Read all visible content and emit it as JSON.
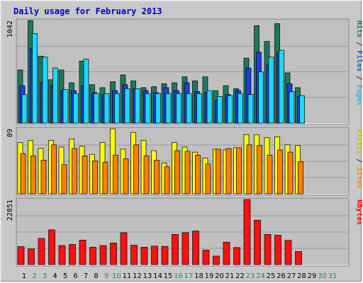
{
  "chart_data": {
    "type": "bar",
    "title": "Daily usage for February 2013",
    "categories": [
      "1",
      "2",
      "3",
      "4",
      "5",
      "6",
      "7",
      "8",
      "9",
      "10",
      "11",
      "12",
      "13",
      "14",
      "15",
      "16",
      "17",
      "18",
      "19",
      "20",
      "21",
      "22",
      "23",
      "24",
      "25",
      "26",
      "27",
      "28",
      "29",
      "30",
      "31"
    ],
    "weekend_days": [
      "2",
      "3",
      "9",
      "10",
      "16",
      "17",
      "23",
      "24",
      "30",
      "31"
    ],
    "panels": [
      {
        "name": "hits-files-pages",
        "ymax_label": "1042",
        "ymax": 1042,
        "right_labels": [
          {
            "text": "Hits",
            "color": "#1a7a5a"
          },
          {
            "text": " / ",
            "color": "#333333"
          },
          {
            "text": "Files",
            "color": "#2060c0"
          },
          {
            "text": " / ",
            "color": "#333333"
          },
          {
            "text": "Pages",
            "color": "#30c0e0"
          }
        ],
        "series": [
          {
            "name": "Hits",
            "color": "#1b7a5e",
            "values": [
              540,
              1042,
              680,
              440,
              540,
              410,
              630,
              390,
              360,
              420,
              490,
              430,
              360,
              370,
              400,
              410,
              470,
              430,
              470,
              330,
              380,
              350,
              660,
              990,
              830,
              1010,
              510,
              360,
              0,
              0,
              0
            ]
          },
          {
            "name": "Files",
            "color": "#1e3fd8",
            "values": [
              380,
              760,
              410,
              380,
              330,
              330,
              380,
              310,
              290,
              330,
              390,
              350,
              330,
              310,
              360,
              330,
              410,
              320,
              310,
              230,
              290,
              330,
              560,
              720,
              590,
              720,
              400,
              270,
              0,
              0,
              0
            ]
          },
          {
            "name": "Pages",
            "color": "#20d8ff",
            "values": [
              290,
              910,
              670,
              560,
              340,
              300,
              650,
              300,
              300,
              300,
              350,
              350,
              300,
              300,
              300,
              300,
              300,
              300,
              330,
              270,
              280,
              300,
              290,
              520,
              670,
              740,
              320,
              280,
              0,
              0,
              0
            ]
          }
        ]
      },
      {
        "name": "visits-sites",
        "ymax_label": "89",
        "ymax": 89,
        "right_labels": [
          {
            "text": "Visits",
            "color": "#c8c800"
          },
          {
            "text": " / ",
            "color": "#333333"
          },
          {
            "text": "Sites",
            "color": "#ff8c00"
          }
        ],
        "series": [
          {
            "name": "Visits",
            "color": "#ffff00",
            "values": [
              70,
              73,
              62,
              73,
              64,
              75,
              65,
              54,
              70,
              89,
              61,
              84,
              73,
              59,
              42,
              70,
              64,
              57,
              49,
              61,
              60,
              63,
              81,
              81,
              77,
              78,
              67,
              66,
              0,
              0,
              0
            ]
          },
          {
            "name": "Sites",
            "color": "#ff8000",
            "values": [
              55,
              52,
              46,
              67,
              40,
              62,
              52,
              45,
              43,
              53,
              48,
              67,
              52,
              46,
              37,
              59,
              58,
              53,
              41,
              61,
              62,
              63,
              67,
              66,
              53,
              60,
              57,
              44,
              0,
              0,
              0
            ]
          }
        ]
      },
      {
        "name": "kbytes",
        "ymax_label": "22851",
        "ymax": 22851,
        "right_labels": [
          {
            "text": "KBytes",
            "color": "#ff0000"
          }
        ],
        "series": [
          {
            "name": "KBytes",
            "color": "#ff1010",
            "values": [
              6300,
              5500,
              9200,
              12200,
              6700,
              7100,
              8600,
              6100,
              6700,
              7600,
              11200,
              6800,
              6100,
              6500,
              6400,
              10600,
              11200,
              11800,
              5100,
              3000,
              7900,
              6000,
              22851,
              15600,
              10600,
              10300,
              8500,
              4600,
              0,
              0,
              0
            ]
          }
        ]
      }
    ]
  }
}
